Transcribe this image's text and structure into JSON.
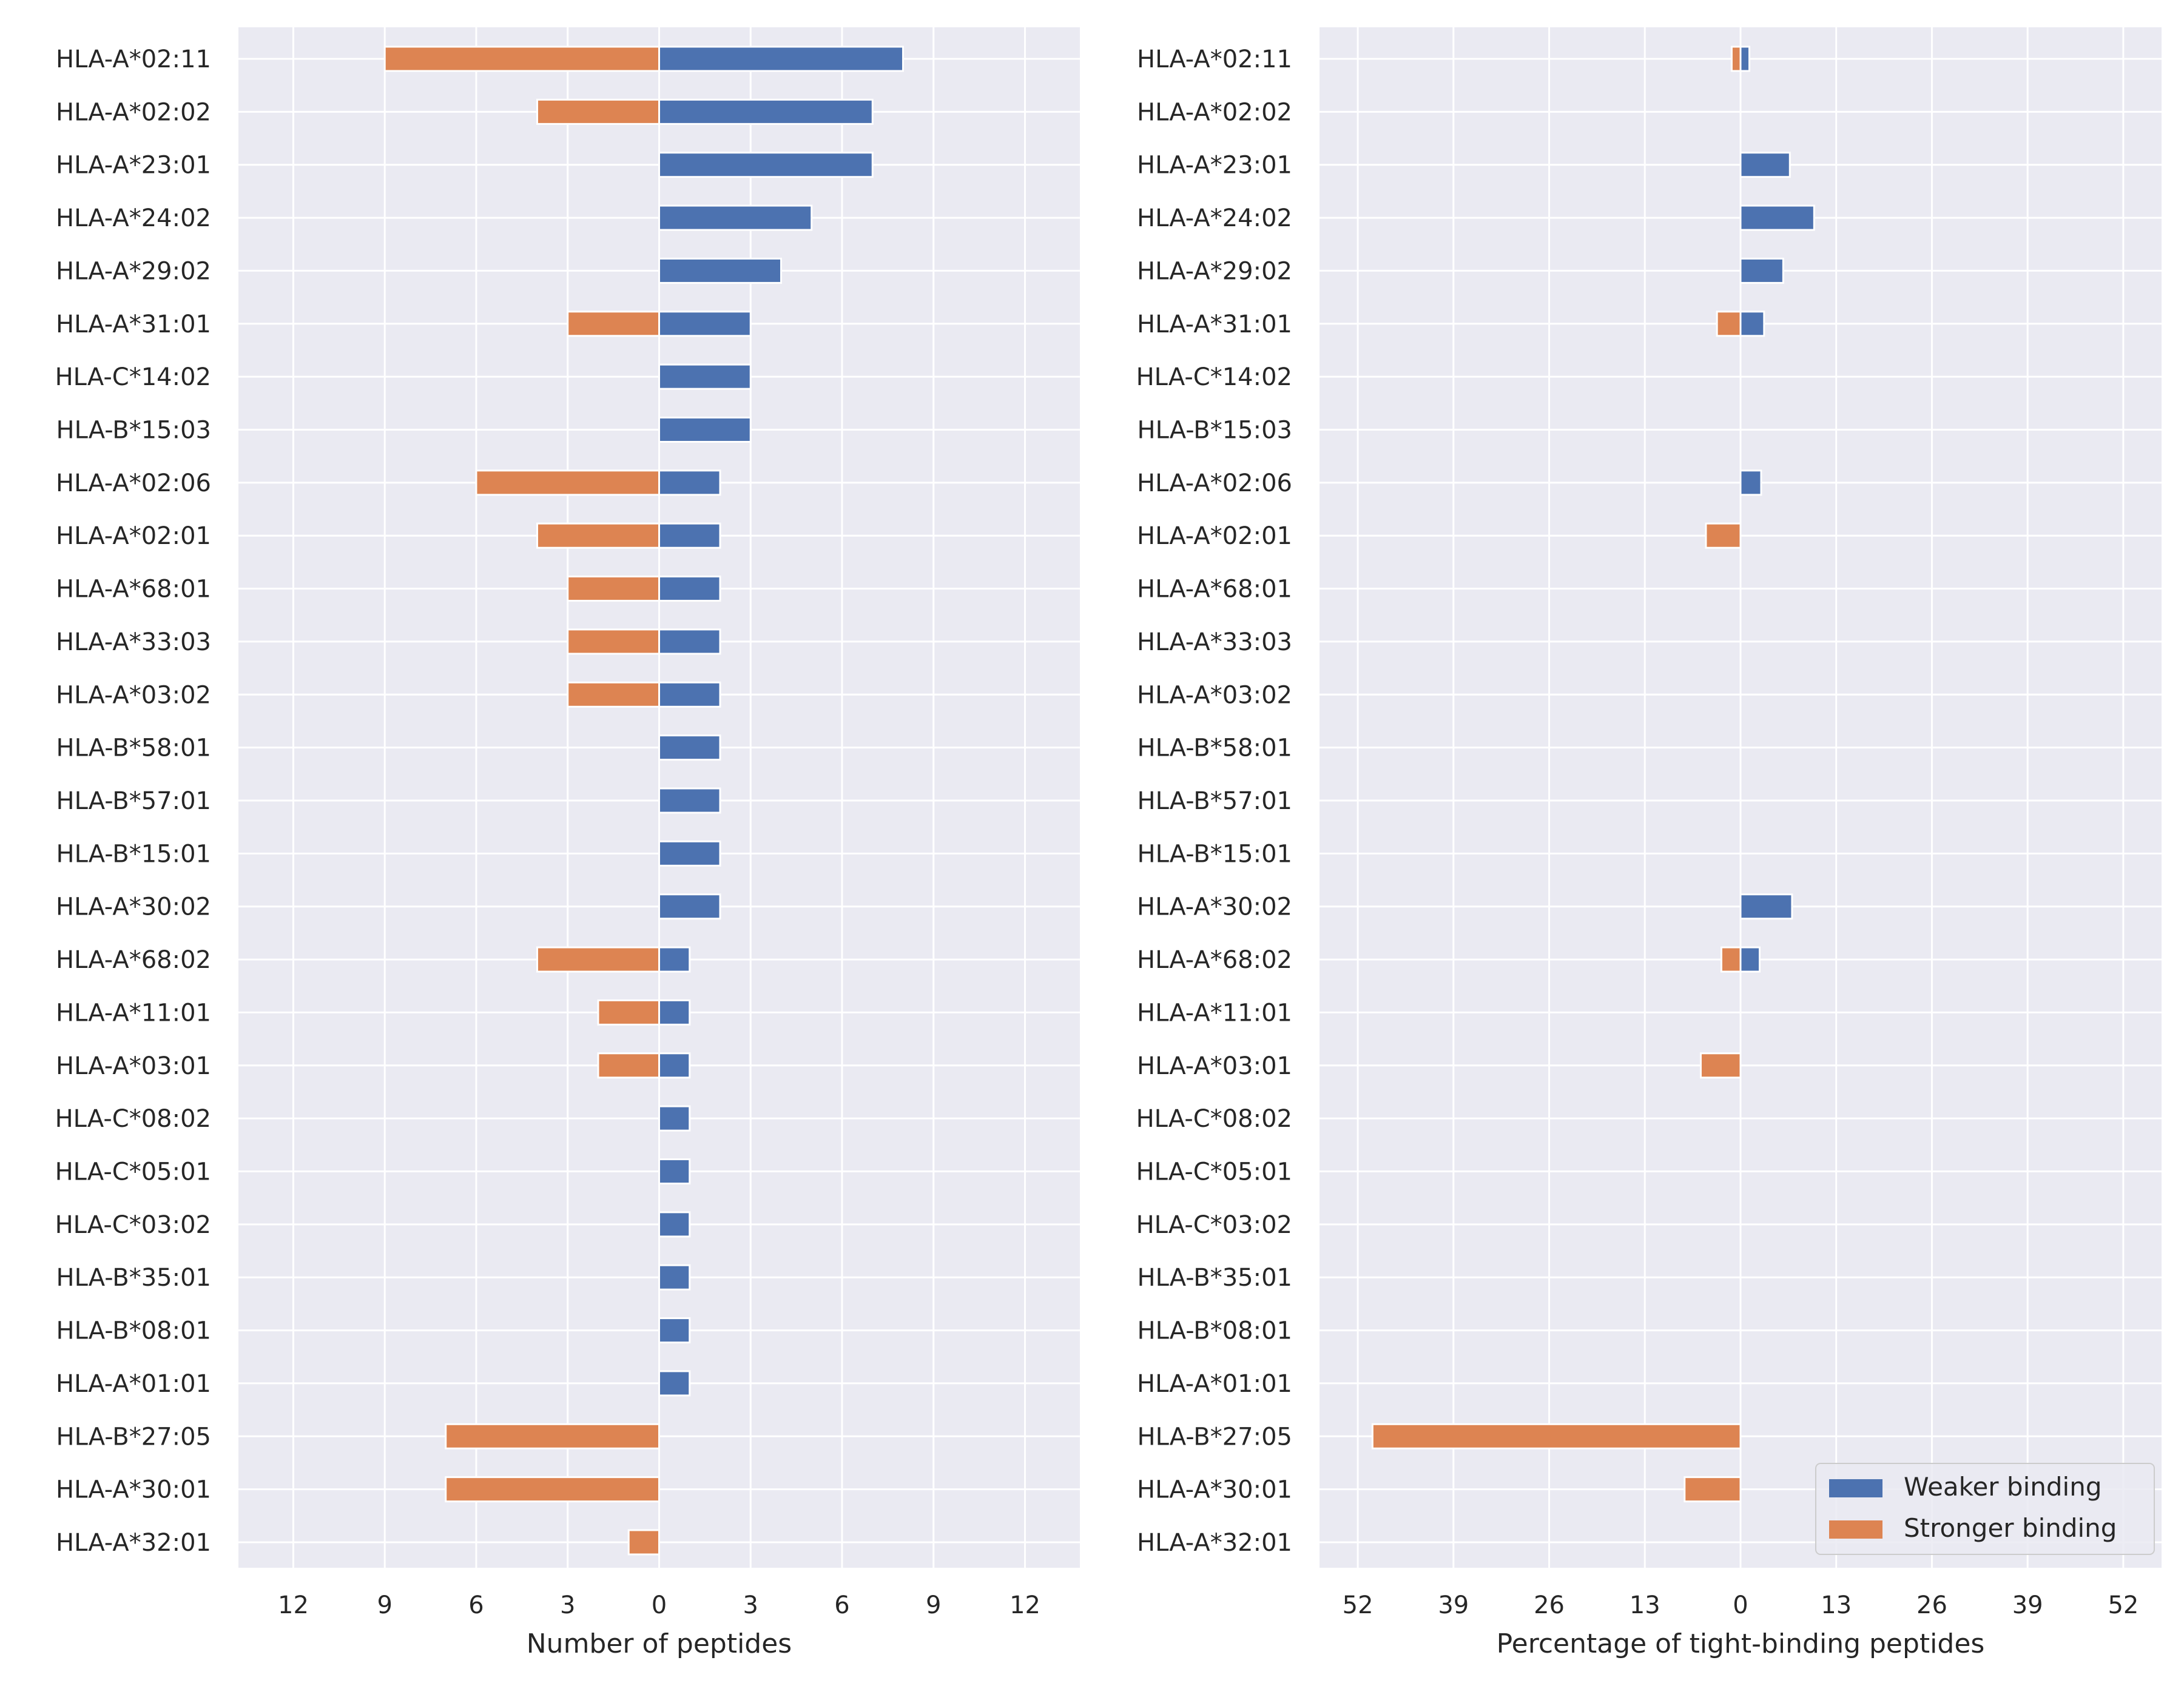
{
  "colors": {
    "weaker": "#4c72b0",
    "stronger": "#dd8452",
    "panel_bg": "#eaeaf2",
    "grid": "#ffffff",
    "text": "#262626"
  },
  "legend": {
    "placement": "lower-right",
    "items": [
      {
        "label": "Weaker binding",
        "color": "#4c72b0"
      },
      {
        "label": "Stronger binding",
        "color": "#dd8452"
      }
    ]
  },
  "chart_data": [
    {
      "type": "bar",
      "orientation": "horizontal-diverging",
      "xlabel": "Number of peptides",
      "ylabel": "",
      "xlim": [
        -13.8,
        13.8
      ],
      "xticks": [
        -12,
        -9,
        -6,
        -3,
        0,
        3,
        6,
        9,
        12
      ],
      "xtick_labels": [
        "12",
        "9",
        "6",
        "3",
        "0",
        "3",
        "6",
        "9",
        "12"
      ],
      "grid": true,
      "categories": [
        "HLA-A*02:11",
        "HLA-A*02:02",
        "HLA-A*23:01",
        "HLA-A*24:02",
        "HLA-A*29:02",
        "HLA-A*31:01",
        "HLA-C*14:02",
        "HLA-B*15:03",
        "HLA-A*02:06",
        "HLA-A*02:01",
        "HLA-A*68:01",
        "HLA-A*33:03",
        "HLA-A*03:02",
        "HLA-B*58:01",
        "HLA-B*57:01",
        "HLA-B*15:01",
        "HLA-A*30:02",
        "HLA-A*68:02",
        "HLA-A*11:01",
        "HLA-A*03:01",
        "HLA-C*08:02",
        "HLA-C*05:01",
        "HLA-C*03:02",
        "HLA-B*35:01",
        "HLA-B*08:01",
        "HLA-A*01:01",
        "HLA-B*27:05",
        "HLA-A*30:01",
        "HLA-A*32:01"
      ],
      "series": [
        {
          "name": "Weaker binding",
          "values": [
            8,
            7,
            7,
            5,
            4,
            3,
            3,
            3,
            2,
            2,
            2,
            2,
            2,
            2,
            2,
            2,
            2,
            1,
            1,
            1,
            1,
            1,
            1,
            1,
            1,
            1,
            0,
            0,
            0
          ]
        },
        {
          "name": "Stronger binding",
          "values": [
            9,
            4,
            0,
            0,
            0,
            3,
            0,
            0,
            6,
            4,
            3,
            3,
            3,
            0,
            0,
            0,
            0,
            4,
            2,
            2,
            0,
            0,
            0,
            0,
            0,
            0,
            7,
            7,
            1
          ]
        }
      ]
    },
    {
      "type": "bar",
      "orientation": "horizontal-diverging",
      "xlabel": "Percentage of tight-binding peptides",
      "ylabel": "",
      "xlim": [
        -57.2,
        57.2
      ],
      "xticks": [
        -52,
        -39,
        -26,
        -13,
        0,
        13,
        26,
        39,
        52
      ],
      "xtick_labels": [
        "52",
        "39",
        "26",
        "13",
        "0",
        "13",
        "26",
        "39",
        "52"
      ],
      "grid": true,
      "categories": [
        "HLA-A*02:11",
        "HLA-A*02:02",
        "HLA-A*23:01",
        "HLA-A*24:02",
        "HLA-A*29:02",
        "HLA-A*31:01",
        "HLA-C*14:02",
        "HLA-B*15:03",
        "HLA-A*02:06",
        "HLA-A*02:01",
        "HLA-A*68:01",
        "HLA-A*33:03",
        "HLA-A*03:02",
        "HLA-B*58:01",
        "HLA-B*57:01",
        "HLA-B*15:01",
        "HLA-A*30:02",
        "HLA-A*68:02",
        "HLA-A*11:01",
        "HLA-A*03:01",
        "HLA-C*08:02",
        "HLA-C*05:01",
        "HLA-C*03:02",
        "HLA-B*35:01",
        "HLA-B*08:01",
        "HLA-A*01:01",
        "HLA-B*27:05",
        "HLA-A*30:01",
        "HLA-A*32:01"
      ],
      "series": [
        {
          "name": "Weaker binding",
          "values": [
            1.2,
            0,
            6.7,
            10.0,
            5.8,
            3.2,
            0,
            0,
            2.8,
            0,
            0,
            0,
            0,
            0,
            0,
            0,
            7.0,
            2.6,
            0,
            0,
            0,
            0,
            0,
            0,
            0,
            0,
            0,
            0,
            0
          ]
        },
        {
          "name": "Stronger binding",
          "values": [
            1.2,
            0,
            0,
            0,
            0,
            3.2,
            0,
            0,
            0,
            4.7,
            0,
            0,
            0,
            0,
            0,
            0,
            0,
            2.6,
            0,
            5.4,
            0,
            0,
            0,
            0,
            0,
            0,
            50.0,
            7.6,
            0
          ]
        }
      ]
    }
  ]
}
